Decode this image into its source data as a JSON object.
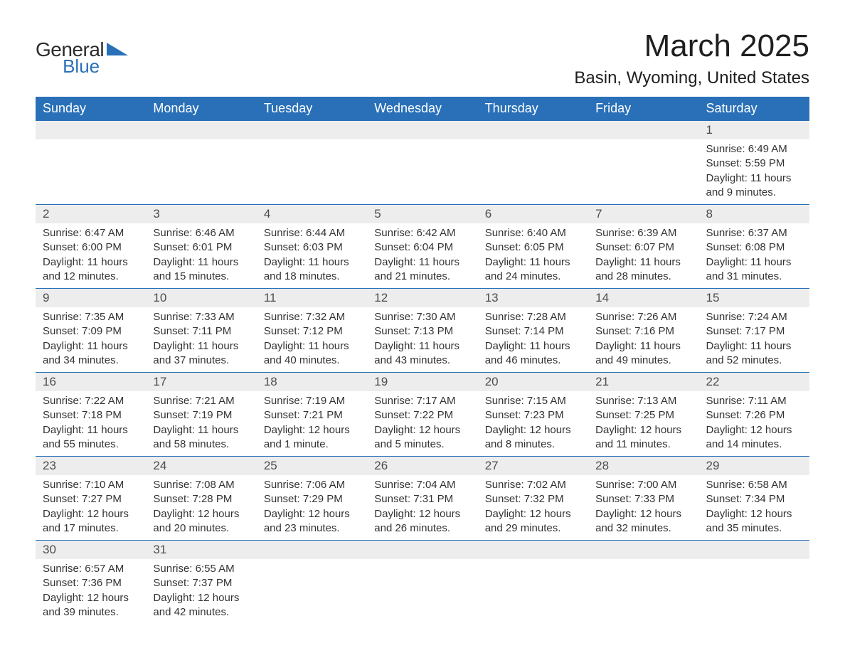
{
  "logo": {
    "general": "General",
    "blue": "Blue",
    "icon_color": "#2970b8"
  },
  "title": {
    "month": "March 2025",
    "location": "Basin, Wyoming, United States"
  },
  "colors": {
    "header_bg": "#2970b8",
    "header_text": "#ffffff",
    "daynum_bg": "#ededed",
    "daynum_text": "#4d4d4d",
    "body_text": "#333333",
    "rule": "#2970b8"
  },
  "weekdays": [
    "Sunday",
    "Monday",
    "Tuesday",
    "Wednesday",
    "Thursday",
    "Friday",
    "Saturday"
  ],
  "weeks": [
    [
      {
        "num": "",
        "lines": []
      },
      {
        "num": "",
        "lines": []
      },
      {
        "num": "",
        "lines": []
      },
      {
        "num": "",
        "lines": []
      },
      {
        "num": "",
        "lines": []
      },
      {
        "num": "",
        "lines": []
      },
      {
        "num": "1",
        "lines": [
          "Sunrise: 6:49 AM",
          "Sunset: 5:59 PM",
          "Daylight: 11 hours and 9 minutes."
        ]
      }
    ],
    [
      {
        "num": "2",
        "lines": [
          "Sunrise: 6:47 AM",
          "Sunset: 6:00 PM",
          "Daylight: 11 hours and 12 minutes."
        ]
      },
      {
        "num": "3",
        "lines": [
          "Sunrise: 6:46 AM",
          "Sunset: 6:01 PM",
          "Daylight: 11 hours and 15 minutes."
        ]
      },
      {
        "num": "4",
        "lines": [
          "Sunrise: 6:44 AM",
          "Sunset: 6:03 PM",
          "Daylight: 11 hours and 18 minutes."
        ]
      },
      {
        "num": "5",
        "lines": [
          "Sunrise: 6:42 AM",
          "Sunset: 6:04 PM",
          "Daylight: 11 hours and 21 minutes."
        ]
      },
      {
        "num": "6",
        "lines": [
          "Sunrise: 6:40 AM",
          "Sunset: 6:05 PM",
          "Daylight: 11 hours and 24 minutes."
        ]
      },
      {
        "num": "7",
        "lines": [
          "Sunrise: 6:39 AM",
          "Sunset: 6:07 PM",
          "Daylight: 11 hours and 28 minutes."
        ]
      },
      {
        "num": "8",
        "lines": [
          "Sunrise: 6:37 AM",
          "Sunset: 6:08 PM",
          "Daylight: 11 hours and 31 minutes."
        ]
      }
    ],
    [
      {
        "num": "9",
        "lines": [
          "Sunrise: 7:35 AM",
          "Sunset: 7:09 PM",
          "Daylight: 11 hours and 34 minutes."
        ]
      },
      {
        "num": "10",
        "lines": [
          "Sunrise: 7:33 AM",
          "Sunset: 7:11 PM",
          "Daylight: 11 hours and 37 minutes."
        ]
      },
      {
        "num": "11",
        "lines": [
          "Sunrise: 7:32 AM",
          "Sunset: 7:12 PM",
          "Daylight: 11 hours and 40 minutes."
        ]
      },
      {
        "num": "12",
        "lines": [
          "Sunrise: 7:30 AM",
          "Sunset: 7:13 PM",
          "Daylight: 11 hours and 43 minutes."
        ]
      },
      {
        "num": "13",
        "lines": [
          "Sunrise: 7:28 AM",
          "Sunset: 7:14 PM",
          "Daylight: 11 hours and 46 minutes."
        ]
      },
      {
        "num": "14",
        "lines": [
          "Sunrise: 7:26 AM",
          "Sunset: 7:16 PM",
          "Daylight: 11 hours and 49 minutes."
        ]
      },
      {
        "num": "15",
        "lines": [
          "Sunrise: 7:24 AM",
          "Sunset: 7:17 PM",
          "Daylight: 11 hours and 52 minutes."
        ]
      }
    ],
    [
      {
        "num": "16",
        "lines": [
          "Sunrise: 7:22 AM",
          "Sunset: 7:18 PM",
          "Daylight: 11 hours and 55 minutes."
        ]
      },
      {
        "num": "17",
        "lines": [
          "Sunrise: 7:21 AM",
          "Sunset: 7:19 PM",
          "Daylight: 11 hours and 58 minutes."
        ]
      },
      {
        "num": "18",
        "lines": [
          "Sunrise: 7:19 AM",
          "Sunset: 7:21 PM",
          "Daylight: 12 hours and 1 minute."
        ]
      },
      {
        "num": "19",
        "lines": [
          "Sunrise: 7:17 AM",
          "Sunset: 7:22 PM",
          "Daylight: 12 hours and 5 minutes."
        ]
      },
      {
        "num": "20",
        "lines": [
          "Sunrise: 7:15 AM",
          "Sunset: 7:23 PM",
          "Daylight: 12 hours and 8 minutes."
        ]
      },
      {
        "num": "21",
        "lines": [
          "Sunrise: 7:13 AM",
          "Sunset: 7:25 PM",
          "Daylight: 12 hours and 11 minutes."
        ]
      },
      {
        "num": "22",
        "lines": [
          "Sunrise: 7:11 AM",
          "Sunset: 7:26 PM",
          "Daylight: 12 hours and 14 minutes."
        ]
      }
    ],
    [
      {
        "num": "23",
        "lines": [
          "Sunrise: 7:10 AM",
          "Sunset: 7:27 PM",
          "Daylight: 12 hours and 17 minutes."
        ]
      },
      {
        "num": "24",
        "lines": [
          "Sunrise: 7:08 AM",
          "Sunset: 7:28 PM",
          "Daylight: 12 hours and 20 minutes."
        ]
      },
      {
        "num": "25",
        "lines": [
          "Sunrise: 7:06 AM",
          "Sunset: 7:29 PM",
          "Daylight: 12 hours and 23 minutes."
        ]
      },
      {
        "num": "26",
        "lines": [
          "Sunrise: 7:04 AM",
          "Sunset: 7:31 PM",
          "Daylight: 12 hours and 26 minutes."
        ]
      },
      {
        "num": "27",
        "lines": [
          "Sunrise: 7:02 AM",
          "Sunset: 7:32 PM",
          "Daylight: 12 hours and 29 minutes."
        ]
      },
      {
        "num": "28",
        "lines": [
          "Sunrise: 7:00 AM",
          "Sunset: 7:33 PM",
          "Daylight: 12 hours and 32 minutes."
        ]
      },
      {
        "num": "29",
        "lines": [
          "Sunrise: 6:58 AM",
          "Sunset: 7:34 PM",
          "Daylight: 12 hours and 35 minutes."
        ]
      }
    ],
    [
      {
        "num": "30",
        "lines": [
          "Sunrise: 6:57 AM",
          "Sunset: 7:36 PM",
          "Daylight: 12 hours and 39 minutes."
        ]
      },
      {
        "num": "31",
        "lines": [
          "Sunrise: 6:55 AM",
          "Sunset: 7:37 PM",
          "Daylight: 12 hours and 42 minutes."
        ]
      },
      {
        "num": "",
        "lines": []
      },
      {
        "num": "",
        "lines": []
      },
      {
        "num": "",
        "lines": []
      },
      {
        "num": "",
        "lines": []
      },
      {
        "num": "",
        "lines": []
      }
    ]
  ]
}
